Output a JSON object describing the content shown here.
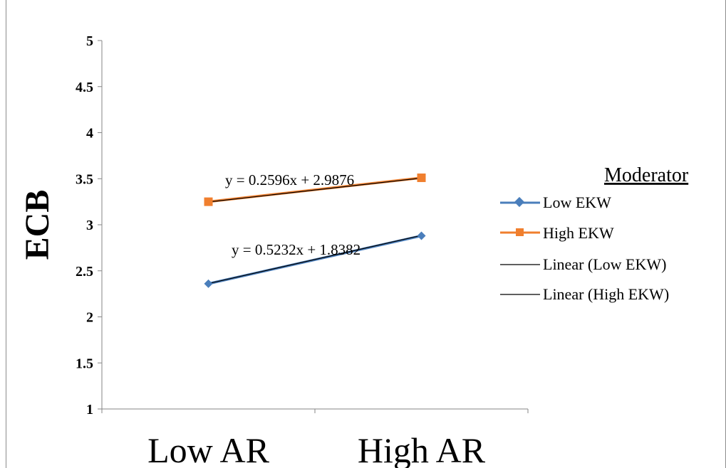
{
  "chart_data": {
    "type": "line",
    "categories": [
      "Low AR",
      "High AR"
    ],
    "ylabel": "ECB",
    "xlabel": "",
    "ylim": [
      1,
      5
    ],
    "y_ticks": [
      "1",
      "1.5",
      "2",
      "2.5",
      "3",
      "3.5",
      "4",
      "4.5",
      "5"
    ],
    "grid": false,
    "legend_position": "right",
    "legend_title": "Moderator",
    "series": [
      {
        "name": "Low EKW",
        "values": [
          2.36,
          2.88
        ],
        "color": "#4a7ebb",
        "marker": "diamond"
      },
      {
        "name": "High EKW",
        "values": [
          3.25,
          3.51
        ],
        "color": "#f07f2e",
        "marker": "square"
      }
    ],
    "trendlines": [
      {
        "name": "Linear (Low EKW)",
        "equation": "y = 0.5232x + 1.8382",
        "slope": 0.5232,
        "intercept": 1.8382,
        "color": "#000000"
      },
      {
        "name": "Linear (High EKW)",
        "equation": "y = 0.2596x + 2.9876",
        "slope": 0.2596,
        "intercept": 2.9876,
        "color": "#000000"
      }
    ]
  }
}
